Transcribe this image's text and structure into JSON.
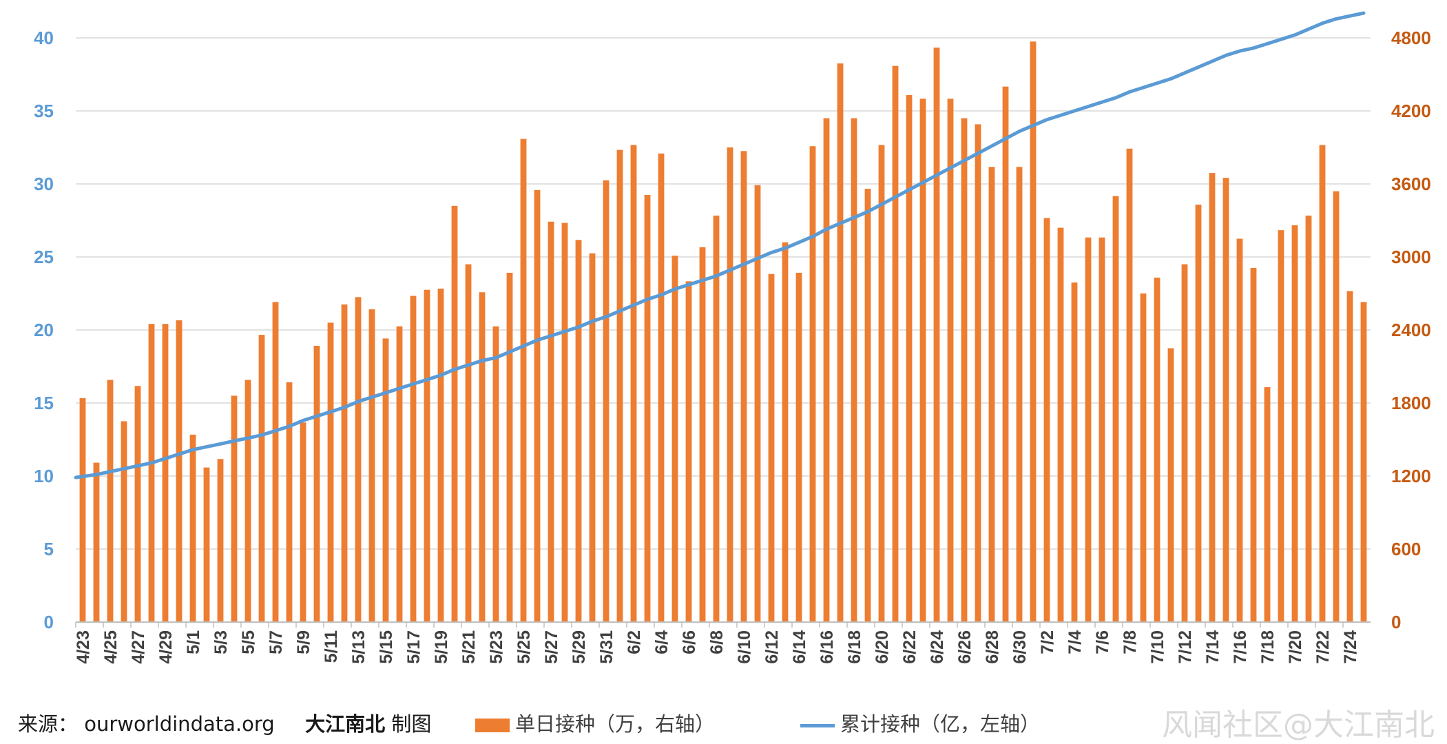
{
  "colors": {
    "bar": "#ED7D31",
    "line": "#5B9BD5",
    "left_axis_text": "#5B9BD5",
    "right_axis_text": "#C55A11",
    "grid": "#D9D9D9"
  },
  "footer": {
    "source_label": "来源：",
    "source_url": "ourworldindata.org",
    "author": "大江南北",
    "author_suffix": "制图",
    "watermark": "风闻社区@大江南北"
  },
  "chart_data": {
    "type": "bar+line",
    "categories": [
      "4/23",
      "4/24",
      "4/25",
      "4/26",
      "4/27",
      "4/28",
      "4/29",
      "4/30",
      "5/1",
      "5/2",
      "5/3",
      "5/4",
      "5/5",
      "5/6",
      "5/7",
      "5/8",
      "5/9",
      "5/10",
      "5/11",
      "5/12",
      "5/13",
      "5/14",
      "5/15",
      "5/16",
      "5/17",
      "5/18",
      "5/19",
      "5/20",
      "5/21",
      "5/22",
      "5/23",
      "5/24",
      "5/25",
      "5/26",
      "5/27",
      "5/28",
      "5/29",
      "5/30",
      "5/31",
      "6/1",
      "6/2",
      "6/3",
      "6/4",
      "6/5",
      "6/6",
      "6/7",
      "6/8",
      "6/9",
      "6/10",
      "6/11",
      "6/12",
      "6/13",
      "6/14",
      "6/15",
      "6/16",
      "6/17",
      "6/18",
      "6/19",
      "6/20",
      "6/21",
      "6/22",
      "6/23",
      "6/24",
      "6/25",
      "6/26",
      "6/27",
      "6/28",
      "6/29",
      "6/30",
      "7/1",
      "7/2",
      "7/3",
      "7/4",
      "7/5",
      "7/6",
      "7/7",
      "7/8",
      "7/9",
      "7/10",
      "7/11",
      "7/12",
      "7/13",
      "7/14",
      "7/15",
      "7/16",
      "7/17",
      "7/18",
      "7/19",
      "7/20",
      "7/21",
      "7/22",
      "7/23",
      "7/24",
      "7/25"
    ],
    "tick_labels": [
      "4/23",
      "4/25",
      "4/27",
      "4/29",
      "5/1",
      "5/3",
      "5/5",
      "5/7",
      "5/9",
      "5/11",
      "5/13",
      "5/15",
      "5/17",
      "5/19",
      "5/21",
      "5/23",
      "5/25",
      "5/27",
      "5/29",
      "5/31",
      "6/2",
      "6/4",
      "6/6",
      "6/8",
      "6/10",
      "6/12",
      "6/14",
      "6/16",
      "6/18",
      "6/20",
      "6/22",
      "6/24",
      "6/26",
      "6/28",
      "6/30",
      "7/2",
      "7/4",
      "7/6",
      "7/8",
      "7/10",
      "7/12",
      "7/14",
      "7/16",
      "7/18",
      "7/20",
      "7/22",
      "7/24"
    ],
    "series": [
      {
        "name": "单日接种（万，右轴）",
        "type": "bar",
        "axis": "right",
        "values": [
          1840,
          1310,
          1990,
          1650,
          1940,
          2450,
          2450,
          2480,
          1540,
          1270,
          1340,
          1860,
          1990,
          2360,
          2630,
          1970,
          1640,
          2270,
          2460,
          2610,
          2670,
          2570,
          2330,
          2430,
          2680,
          2730,
          2740,
          3420,
          2940,
          2710,
          2430,
          2870,
          3970,
          3550,
          3290,
          3280,
          3140,
          3030,
          3630,
          3880,
          3920,
          3510,
          3850,
          3010,
          2800,
          3080,
          3340,
          3900,
          3870,
          3590,
          2860,
          3120,
          2870,
          3910,
          4140,
          4590,
          4140,
          3560,
          3920,
          4570,
          4330,
          4300,
          4720,
          4300,
          4140,
          4090,
          3740,
          4400,
          3740,
          4770,
          3320,
          3240,
          2790,
          3160,
          3160,
          3500,
          3890,
          2700,
          2830,
          2250,
          2940,
          3430,
          3690,
          3650,
          3150,
          2910,
          1930,
          3220,
          3260,
          3340,
          3920,
          3540,
          2720,
          2630
        ]
      },
      {
        "name": "累计接种（亿，左轴）",
        "type": "line",
        "axis": "left",
        "values": [
          9.9,
          10.1,
          10.3,
          10.5,
          10.7,
          10.9,
          11.2,
          11.5,
          11.8,
          12.0,
          12.2,
          12.4,
          12.6,
          12.8,
          13.1,
          13.4,
          13.8,
          14.1,
          14.4,
          14.7,
          15.1,
          15.4,
          15.7,
          16.0,
          16.3,
          16.6,
          16.9,
          17.3,
          17.6,
          17.9,
          18.1,
          18.5,
          18.9,
          19.3,
          19.6,
          19.9,
          20.2,
          20.6,
          20.9,
          21.3,
          21.7,
          22.1,
          22.4,
          22.8,
          23.1,
          23.4,
          23.7,
          24.1,
          24.5,
          24.9,
          25.3,
          25.6,
          26.0,
          26.4,
          26.9,
          27.3,
          27.7,
          28.1,
          28.6,
          29.1,
          29.6,
          30.1,
          30.6,
          31.1,
          31.6,
          32.1,
          32.6,
          33.1,
          33.6,
          34.0,
          34.4,
          34.7,
          35.0,
          35.3,
          35.6,
          35.9,
          36.3,
          36.6,
          36.9,
          37.2,
          37.6,
          38.0,
          38.4,
          38.8,
          39.1,
          39.3,
          39.6,
          39.9,
          40.2,
          40.6,
          41.0,
          41.3,
          41.5,
          41.7
        ]
      }
    ],
    "y_left": {
      "ticks": [
        0,
        5,
        10,
        15,
        20,
        25,
        30,
        35,
        40
      ],
      "ylim": [
        0,
        40
      ]
    },
    "y_right": {
      "ticks": [
        0,
        600,
        1200,
        1800,
        2400,
        3000,
        3600,
        4200,
        4800
      ],
      "ylim": [
        0,
        4800
      ]
    },
    "grid": true,
    "legend_placement": "bottom"
  }
}
